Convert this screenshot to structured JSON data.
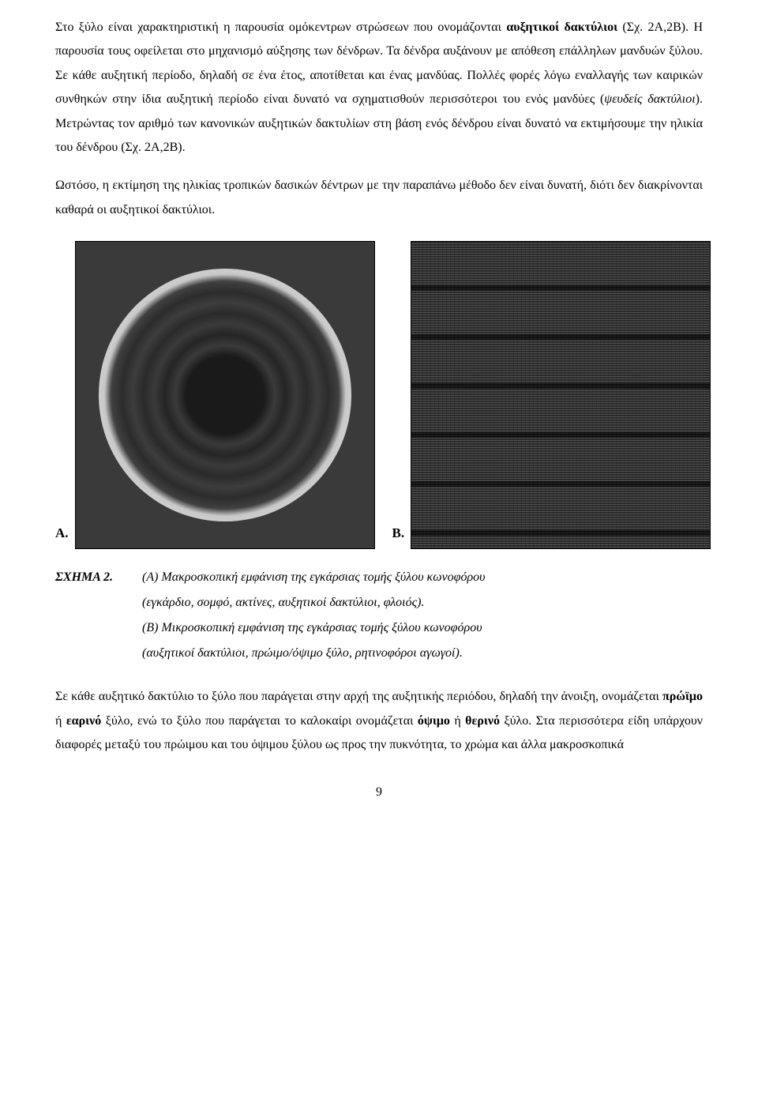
{
  "para1": {
    "t1": "Στο ξύλο είναι χαρακτηριστική η παρουσία ομόκεντρων στρώσεων που ονομάζονται ",
    "b1": "αυξητικοί δακτύλιοι",
    "t2": " (Σχ. 2Α,2Β). Η παρουσία τους οφείλεται στο μηχανισμό αύξησης των δένδρων. Τα δένδρα αυξάνουν με απόθεση επάλληλων μανδυών ξύλου. Σε κάθε αυξητική περίοδο, δηλαδή σε ένα έτος, αποτίθεται και ένας μανδύας. Πολλές φορές λόγω εναλλαγής των καιρικών συνθηκών στην ίδια αυξητική περίοδο είναι δυνατό να σχηματισθούν περισσότεροι του ενός μανδύες (",
    "i1": "ψευδείς δακτύλιοι",
    "t3": "). Μετρώντας τον αριθμό των κανονικών αυξητικών δακτυλίων στη βάση ενός δένδρου είναι δυνατό να εκτιμήσουμε την ηλικία του δένδρου (Σχ. 2Α,2Β)."
  },
  "para2": "Ωστόσο, η εκτίμηση της ηλικίας τροπικών δασικών δέντρων με την παραπάνω μέθοδο δεν είναι δυνατή, διότι δεν διακρίνονται καθαρά οι αυξητικοί δακτύλιοι.",
  "figure": {
    "labelA": "Α.",
    "labelB": "Β."
  },
  "caption": {
    "head": "ΣΧΗΜΑ 2.",
    "lineA1": "(Α) Μακροσκοπική εμφάνιση της εγκάρσιας τομής ξύλου κωνοφόρου",
    "lineA2": "(εγκάρδιο, σομφό, ακτίνες, αυξητικοί δακτύλιοι, φλοιός).",
    "lineB1": "(Β) Μικροσκοπική εμφάνιση της εγκάρσιας τομής ξύλου κωνοφόρου",
    "lineB2": "(αυξητικοί δακτύλιοι, πρώιμο/όψιμο ξύλο, ρητινοφόροι αγωγοί)."
  },
  "para3": {
    "t1": "Σε κάθε αυξητικό δακτύλιο το ξύλο που παράγεται στην αρχή της αυξητικής περιόδου, δηλαδή την άνοιξη, ονομάζεται ",
    "b1": "πρώϊμο",
    "t2": " ή ",
    "b2": "εαρινό",
    "t3": " ξύλο, ενώ το ξύλο που παράγεται το καλοκαίρι ονομάζεται ",
    "b3": "όψιμο",
    "t4": " ή ",
    "b4": "θερινό",
    "t5": " ξύλο. Στα περισσότερα είδη υπάρχουν διαφορές μεταξύ του πρώιμου και του όψιμου ξύλου ως προς την πυκνότητα, το χρώμα και άλλα μακροσκοπικά"
  },
  "pageNumber": "9"
}
